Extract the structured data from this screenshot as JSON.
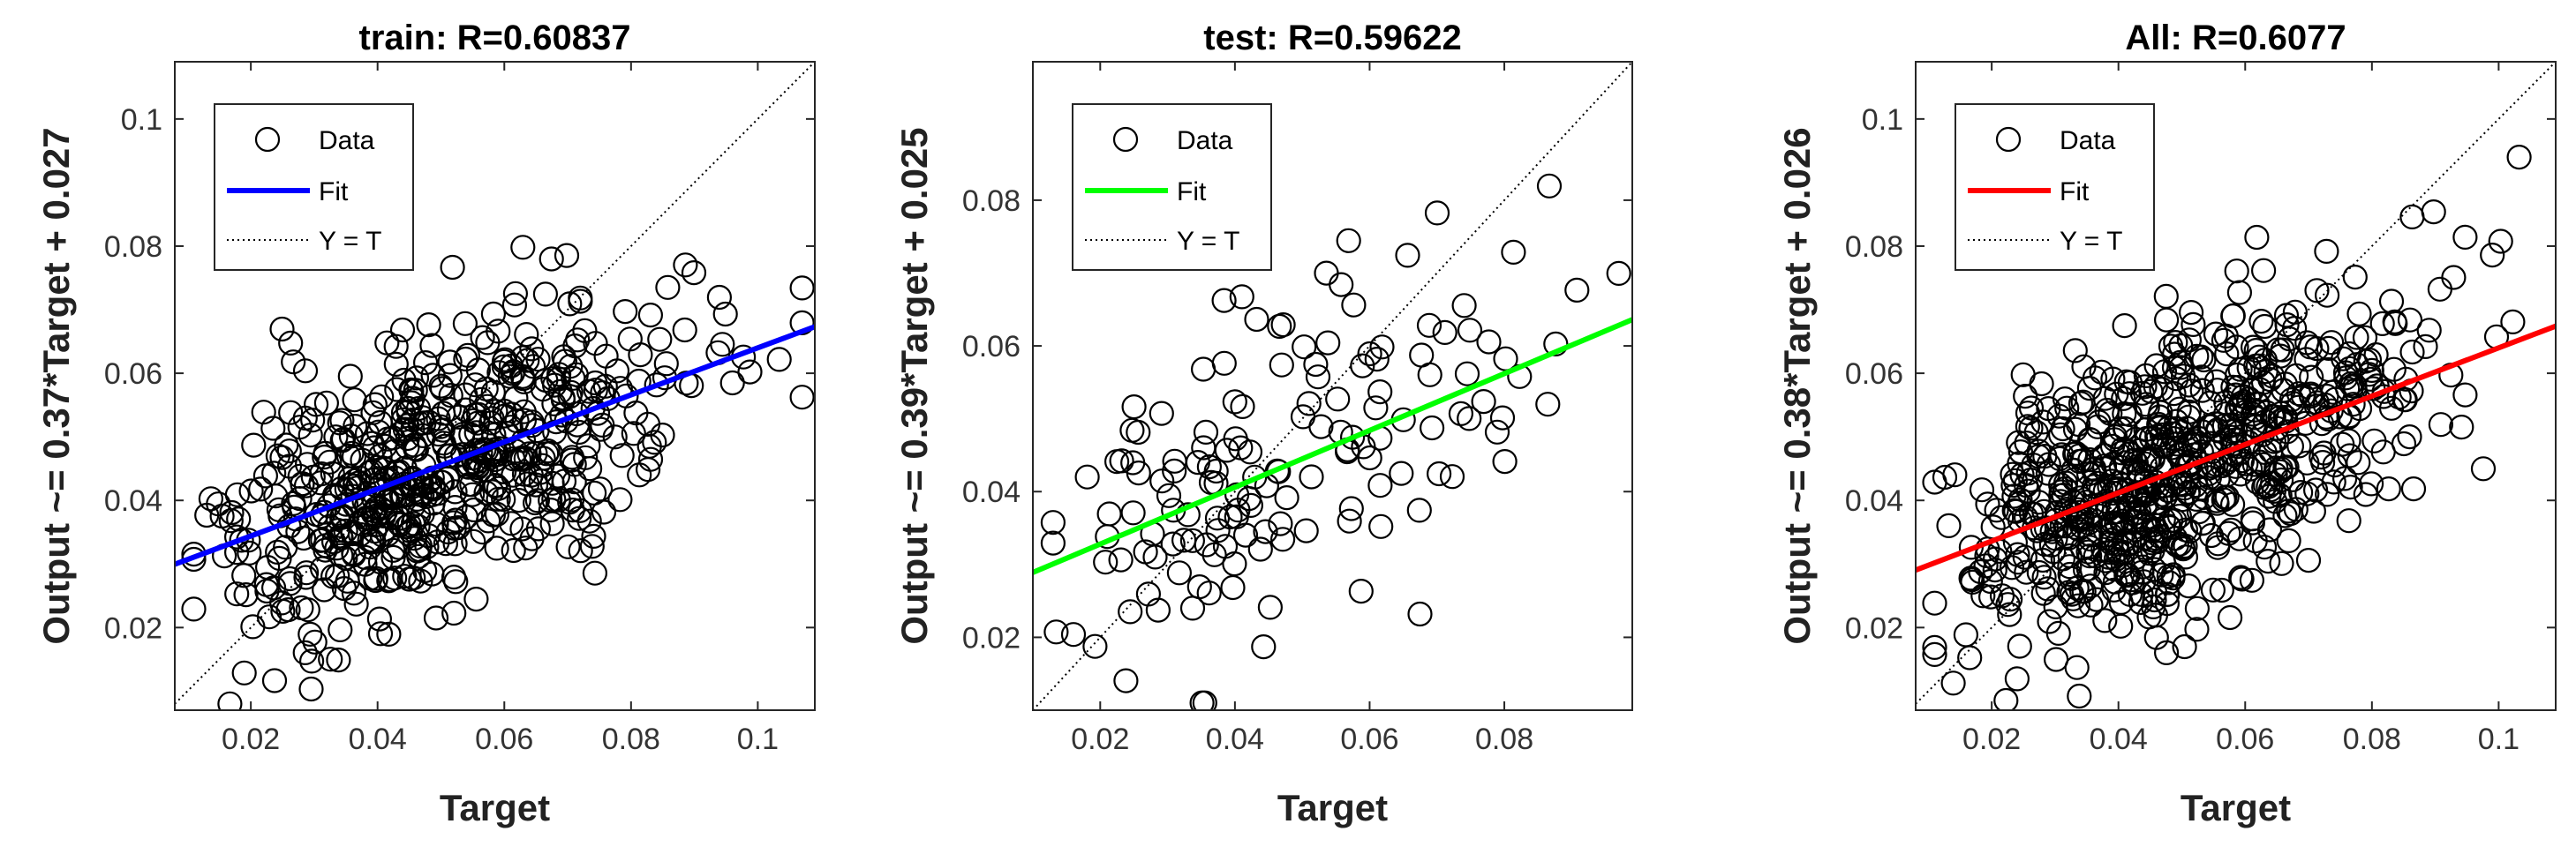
{
  "chart_data": [
    {
      "type": "scatter",
      "title": "train: R=0.60837",
      "xlabel": "Target",
      "ylabel": "Output ~= 0.37*Target + 0.027",
      "xlim": [
        0.008,
        0.109
      ],
      "ylim": [
        0.007,
        0.109
      ],
      "xticks": [
        0.02,
        0.04,
        0.06,
        0.08,
        0.1
      ],
      "xtick_labels": [
        "0.02",
        "0.04",
        "0.06",
        "0.08",
        "0.1"
      ],
      "yticks": [
        0.02,
        0.04,
        0.06,
        0.08,
        0.1
      ],
      "ytick_labels": [
        "0.02",
        "0.04",
        "0.06",
        "0.08",
        "0.1"
      ],
      "fit": {
        "slope": 0.37,
        "intercept": 0.027,
        "color": "#0000ff"
      },
      "legend": [
        "Data",
        "Fit",
        "Y = T"
      ],
      "legend_position": "top-left",
      "grid": false,
      "point_sample": {
        "count": 600,
        "seed": 11
      }
    },
    {
      "type": "scatter",
      "title": "test: R=0.59622",
      "xlabel": "Target",
      "ylabel": "Output ~= 0.39*Target + 0.025",
      "xlim": [
        0.01,
        0.099
      ],
      "ylim": [
        0.01,
        0.099
      ],
      "xticks": [
        0.02,
        0.04,
        0.06,
        0.08
      ],
      "xtick_labels": [
        "0.02",
        "0.04",
        "0.06",
        "0.08"
      ],
      "yticks": [
        0.02,
        0.04,
        0.06,
        0.08
      ],
      "ytick_labels": [
        "0.02",
        "0.04",
        "0.06",
        "0.08"
      ],
      "fit": {
        "slope": 0.39,
        "intercept": 0.025,
        "color": "#00ff00"
      },
      "legend": [
        "Data",
        "Fit",
        "Y = T"
      ],
      "legend_position": "top-left",
      "grid": false,
      "point_sample": {
        "count": 150,
        "seed": 23
      }
    },
    {
      "type": "scatter",
      "title": "All: R=0.6077",
      "xlabel": "Target",
      "ylabel": "Output ~= 0.38*Target + 0.026",
      "xlim": [
        0.008,
        0.109
      ],
      "ylim": [
        0.007,
        0.109
      ],
      "xticks": [
        0.02,
        0.04,
        0.06,
        0.08,
        0.1
      ],
      "xtick_labels": [
        "0.02",
        "0.04",
        "0.06",
        "0.08",
        "0.1"
      ],
      "yticks": [
        0.02,
        0.04,
        0.06,
        0.08,
        0.1
      ],
      "ytick_labels": [
        "0.02",
        "0.04",
        "0.06",
        "0.08",
        "0.1"
      ],
      "fit": {
        "slope": 0.38,
        "intercept": 0.026,
        "color": "#ff0000"
      },
      "legend": [
        "Data",
        "Fit",
        "Y = T"
      ],
      "legend_position": "top-left",
      "grid": false,
      "point_sample": {
        "count": 750,
        "seed": 37
      }
    }
  ]
}
